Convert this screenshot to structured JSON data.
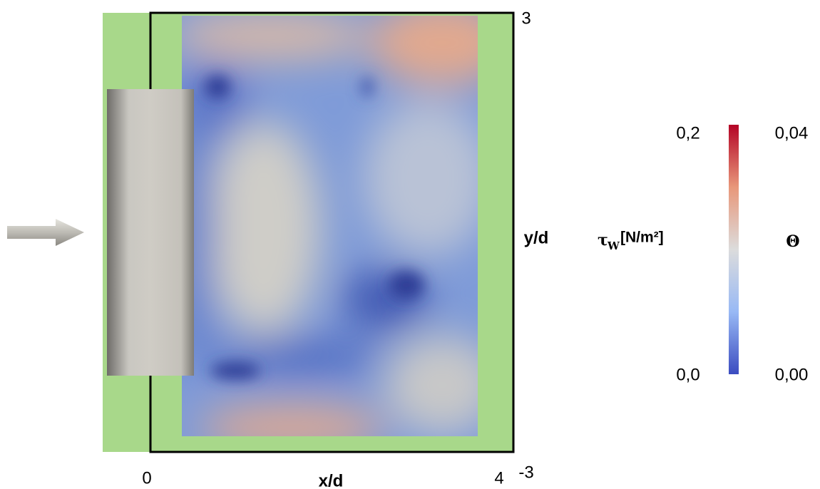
{
  "axes": {
    "x_ticks": [
      "0",
      "4"
    ],
    "x_label": "x/d",
    "y_ticks": [
      "3",
      "-3"
    ],
    "y_label": "y/d"
  },
  "colorbar": {
    "left_symbol": "τ",
    "left_subscript": "W",
    "left_unit": "[N/m²]",
    "left_ticks": [
      "0,2",
      "0,0"
    ],
    "right_label": "Θ",
    "right_ticks": [
      "0,04",
      "0,00"
    ]
  }
}
